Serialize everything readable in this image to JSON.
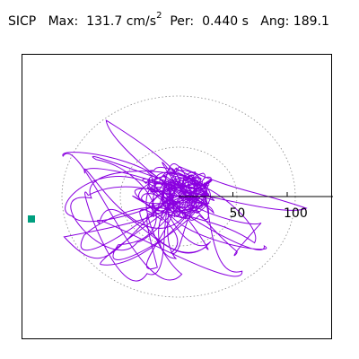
{
  "header": {
    "component": "SICP",
    "max_label": "Max:",
    "max_value": "131.7",
    "max_unit": "cm/s",
    "max_unit_exp": "2",
    "per_label": "Per:",
    "per_value": "0.440",
    "per_unit": "s",
    "ang_label": "Ang:",
    "ang_value": "189.1"
  },
  "axis": {
    "ticks": [
      {
        "label": "50",
        "value": 50
      },
      {
        "label": "100",
        "value": 100
      }
    ]
  },
  "colors": {
    "trace": "#8a00e0",
    "marker": "#009f7f",
    "frame": "#000000",
    "circle": "#888888"
  }
}
